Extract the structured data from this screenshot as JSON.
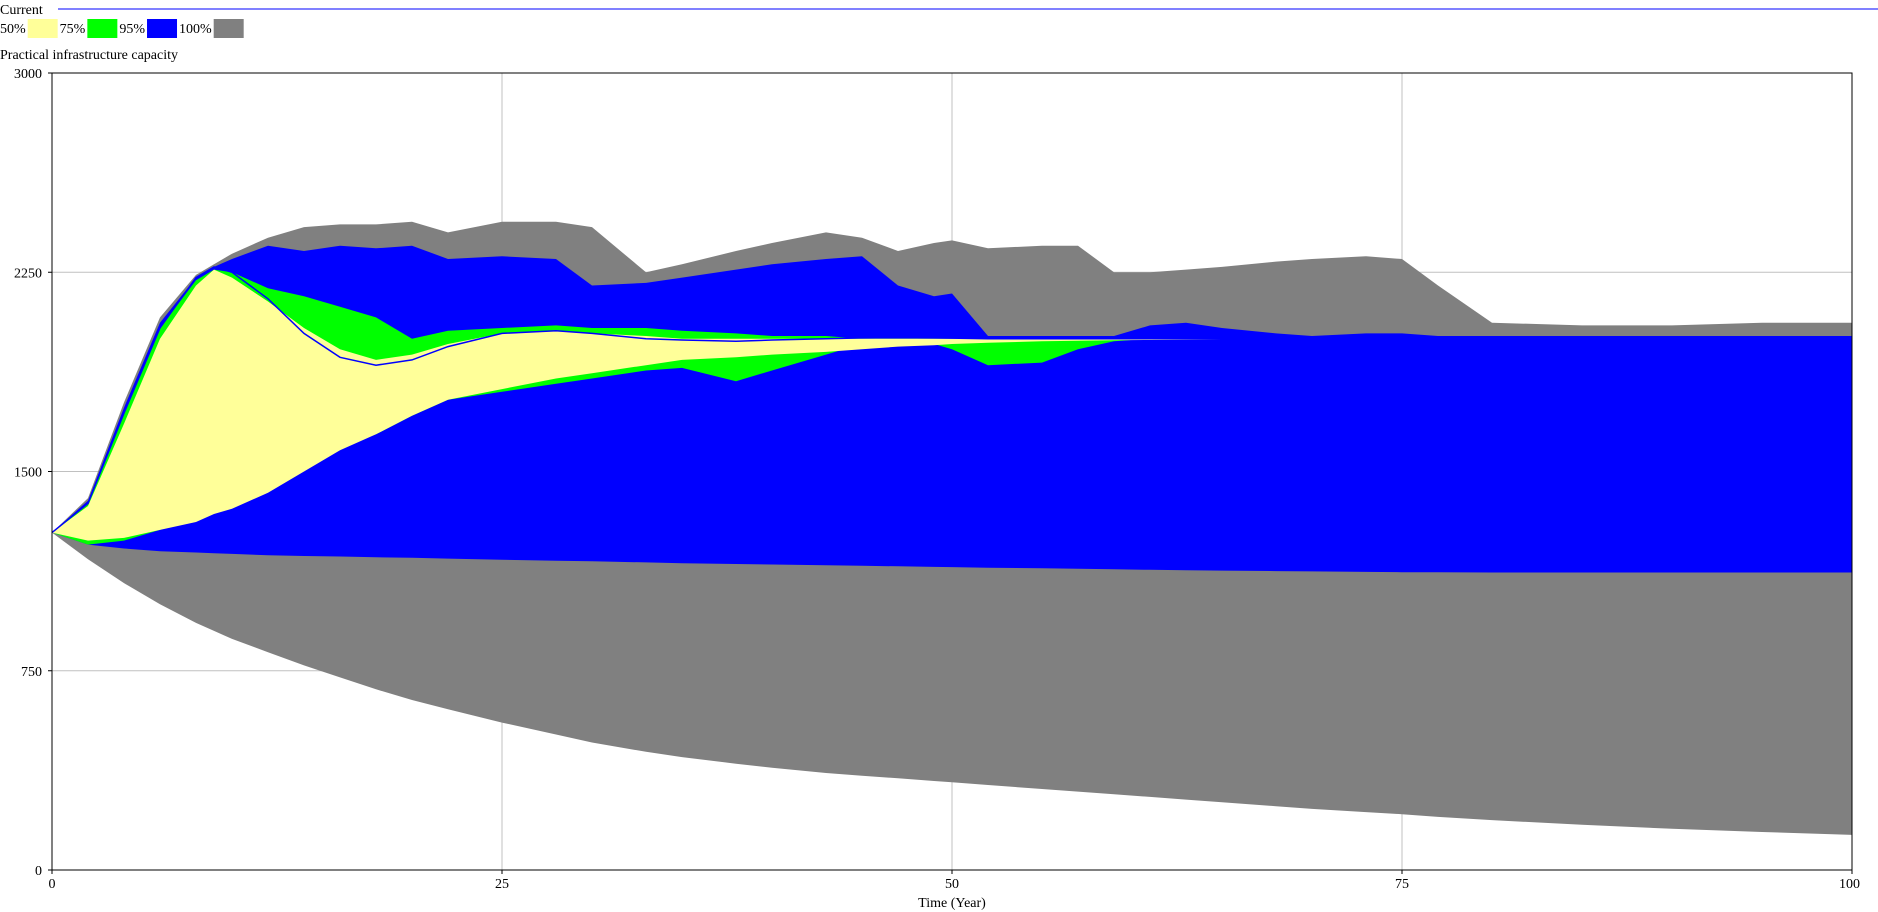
{
  "chart_data": {
    "type": "area",
    "run_label": "Current",
    "variable": "Practical infrastructure capacity",
    "legend": [
      {
        "label": "50%",
        "color": "#ffff99"
      },
      {
        "label": "75%",
        "color": "#00ff00"
      },
      {
        "label": "95%",
        "color": "#0000ff"
      },
      {
        "label": "100%",
        "color": "#808080"
      }
    ],
    "run_line_color": "#0000ff",
    "xlabel": "Time (Year)",
    "ylabel": "",
    "xlim": [
      0,
      100
    ],
    "ylim": [
      0,
      3000
    ],
    "xticks": [
      0,
      25,
      50,
      75,
      100
    ],
    "yticks": [
      0,
      750,
      1500,
      2250,
      3000
    ],
    "grid": true,
    "legend_position": "top-left",
    "x": [
      0,
      2,
      4,
      6,
      8,
      9,
      10,
      12,
      14,
      16,
      18,
      20,
      22,
      25,
      28,
      30,
      33,
      35,
      38,
      40,
      43,
      45,
      47,
      49,
      50,
      52,
      55,
      57,
      59,
      61,
      63,
      65,
      68,
      70,
      73,
      75,
      77,
      80,
      85,
      90,
      95,
      100
    ],
    "bands": [
      {
        "name": "100%",
        "upper": [
          1270,
          1400,
          1760,
          2080,
          2240,
          2280,
          2320,
          2380,
          2420,
          2430,
          2430,
          2440,
          2400,
          2440,
          2440,
          2420,
          2250,
          2280,
          2330,
          2360,
          2400,
          2380,
          2330,
          2360,
          2370,
          2340,
          2350,
          2350,
          2250,
          2250,
          2260,
          2270,
          2290,
          2300,
          2310,
          2300,
          2200,
          2060,
          2050,
          2050,
          2060,
          2060
        ],
        "lower": [
          1270,
          1170,
          1080,
          1000,
          930,
          900,
          870,
          820,
          770,
          725,
          680,
          640,
          605,
          555,
          510,
          480,
          445,
          425,
          400,
          385,
          365,
          355,
          345,
          335,
          330,
          320,
          305,
          295,
          285,
          275,
          265,
          255,
          240,
          230,
          218,
          210,
          200,
          188,
          170,
          155,
          143,
          132
        ]
      },
      {
        "name": "95%",
        "upper": [
          1270,
          1390,
          1740,
          2060,
          2230,
          2270,
          2300,
          2350,
          2330,
          2350,
          2340,
          2350,
          2300,
          2310,
          2300,
          2200,
          2210,
          2230,
          2260,
          2280,
          2300,
          2310,
          2200,
          2160,
          2170,
          2010,
          2010,
          2010,
          2010,
          2050,
          2060,
          2040,
          2020,
          2010,
          2020,
          2020,
          2010,
          2010,
          2010,
          2010,
          2010,
          2010
        ],
        "lower": [
          1270,
          1225,
          1210,
          1200,
          1195,
          1192,
          1190,
          1185,
          1182,
          1180,
          1177,
          1175,
          1172,
          1168,
          1164,
          1162,
          1158,
          1155,
          1152,
          1150,
          1147,
          1145,
          1143,
          1141,
          1140,
          1138,
          1136,
          1134,
          1132,
          1130,
          1128,
          1127,
          1125,
          1124,
          1122,
          1121,
          1121,
          1120,
          1120,
          1120,
          1120,
          1120
        ]
      },
      {
        "name": "75%",
        "upper": [
          1270,
          1380,
          1720,
          2040,
          2220,
          2260,
          2250,
          2190,
          2160,
          2120,
          2080,
          2000,
          2030,
          2040,
          2050,
          2040,
          2040,
          2030,
          2020,
          2010,
          2010,
          2000,
          2000,
          2000,
          2000,
          2000,
          2000,
          2000,
          2000,
          2000,
          2000,
          2000,
          2000,
          2000,
          2000,
          2000,
          2000,
          2000,
          2000,
          2000,
          2000,
          2000
        ],
        "lower": [
          1270,
          1225,
          1240,
          1280,
          1330,
          1360,
          1390,
          1450,
          1520,
          1590,
          1640,
          1710,
          1770,
          1800,
          1830,
          1850,
          1880,
          1890,
          1840,
          1880,
          1940,
          1980,
          1980,
          1980,
          1960,
          1900,
          1910,
          1960,
          1990,
          2000,
          2000,
          2000,
          2000,
          2000,
          2000,
          2000,
          2000,
          2000,
          2000,
          2000,
          2000,
          2000
        ]
      },
      {
        "name": "50%",
        "upper": [
          1270,
          1370,
          1680,
          2000,
          2200,
          2260,
          2230,
          2140,
          2040,
          1960,
          1920,
          1940,
          1980,
          2020,
          2030,
          2020,
          2010,
          2000,
          2000,
          2000,
          2000,
          2000,
          2000,
          2000,
          2000,
          2000,
          2000,
          2000,
          2000,
          2000,
          2000,
          2000,
          2000,
          2000,
          2000,
          2000,
          2000,
          2000,
          2000,
          2000,
          2000,
          2000
        ],
        "lower": [
          1270,
          1240,
          1250,
          1280,
          1310,
          1340,
          1360,
          1420,
          1500,
          1580,
          1640,
          1710,
          1770,
          1810,
          1850,
          1870,
          1900,
          1920,
          1930,
          1940,
          1950,
          1960,
          1970,
          1975,
          1980,
          1985,
          1990,
          1992,
          1994,
          1995,
          1996,
          1997,
          1998,
          1998,
          1999,
          1999,
          2000,
          2000,
          2000,
          2000,
          2000,
          2000
        ]
      }
    ],
    "current_run": [
      1270,
      1380,
      1720,
      2040,
      2230,
      2270,
      2250,
      2150,
      2020,
      1930,
      1900,
      1920,
      1970,
      2020,
      2030,
      2020,
      2000,
      1995,
      1990,
      1995,
      2000,
      2003,
      2004,
      2003,
      2002,
      2000,
      2000,
      2000,
      2000,
      2000,
      2000,
      2000,
      2000,
      2000,
      2000,
      2000,
      2000,
      2000,
      2000,
      2000,
      2000,
      2000
    ]
  }
}
